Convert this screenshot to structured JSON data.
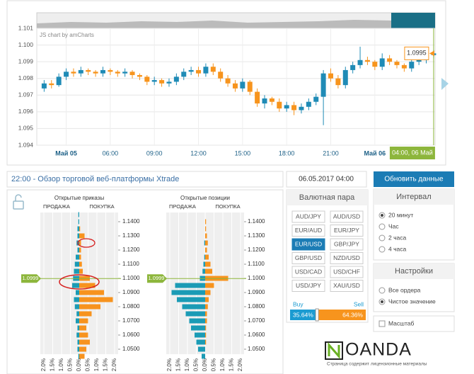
{
  "header": {
    "news": "22:00 - Обзор торговой веб-платформы Xtrade",
    "date": "06.05.2017 04:00",
    "refresh_button": "Обновить данные"
  },
  "chart_data": [
    {
      "type": "candlestick",
      "credit": "JS chart by amCharts",
      "x": [
        1.5,
        2,
        2.5,
        3,
        3.5,
        4,
        4.5,
        5,
        5.5,
        6,
        6.5,
        7,
        7.5,
        8,
        8.5,
        9,
        9.5,
        10,
        10.5,
        11,
        11.5,
        12,
        12.5,
        13,
        13.5,
        14,
        14.5,
        15,
        15.5,
        16,
        16.5,
        17,
        17.5,
        18,
        18.5,
        19,
        19.5,
        20,
        20.5,
        21,
        21.5,
        22,
        22.5,
        23,
        23.5,
        24,
        24.5,
        25,
        25.5,
        26,
        26.5,
        27,
        27.5,
        28
      ],
      "open": [
        1.0974,
        1.0977,
        1.0976,
        1.0981,
        1.0984,
        1.0983,
        1.0985,
        1.0984,
        1.0983,
        1.0985,
        1.0984,
        1.0983,
        1.0984,
        1.0982,
        1.0981,
        1.0978,
        1.0979,
        1.0977,
        1.0978,
        1.0981,
        1.0984,
        1.0985,
        1.0983,
        1.0987,
        1.0984,
        1.098,
        1.0977,
        1.0974,
        1.0978,
        1.0972,
        1.0965,
        1.0968,
        1.0966,
        1.0962,
        1.0964,
        1.0961,
        1.0963,
        1.0966,
        1.0969,
        1.0983,
        1.098,
        1.0976,
        1.0985,
        1.0988,
        1.0991,
        1.099,
        1.0987,
        1.0992,
        1.099,
        1.0988,
        1.0986,
        1.099,
        1.0991,
        1.0994
      ],
      "high": [
        1.0979,
        1.0979,
        1.0983,
        1.0986,
        1.0986,
        1.0987,
        1.0986,
        1.0985,
        1.0987,
        1.0986,
        1.0985,
        1.0986,
        1.0985,
        1.0983,
        1.0982,
        1.0981,
        1.098,
        1.098,
        1.0983,
        1.0986,
        1.0987,
        1.0987,
        1.0989,
        1.0989,
        1.0986,
        1.0982,
        1.0979,
        1.098,
        1.0979,
        1.0974,
        1.097,
        1.0969,
        1.0968,
        1.0966,
        1.0966,
        1.0965,
        1.0968,
        1.0971,
        1.0985,
        1.0986,
        1.0982,
        1.0987,
        1.099,
        1.0999,
        1.0993,
        1.0991,
        1.0995,
        1.0994,
        1.0991,
        1.0989,
        1.0992,
        1.0993,
        1.0996,
        1.0997
      ],
      "low": [
        1.0972,
        1.0974,
        1.0975,
        1.0979,
        1.0981,
        1.0981,
        1.0982,
        1.0981,
        1.0981,
        1.0982,
        1.0981,
        1.0981,
        1.098,
        1.0979,
        1.0976,
        1.0976,
        1.0975,
        1.0975,
        1.0976,
        1.0979,
        1.0982,
        1.0981,
        1.0981,
        1.0982,
        1.0978,
        1.0975,
        1.0972,
        1.0972,
        1.097,
        1.0963,
        1.0962,
        1.0964,
        1.096,
        1.096,
        1.0958,
        1.0959,
        1.0961,
        1.0964,
        1.0952,
        1.0978,
        1.0974,
        1.0974,
        1.0983,
        1.0986,
        1.0988,
        1.0985,
        1.0985,
        1.0988,
        1.0986,
        1.0984,
        1.0984,
        1.0988,
        1.0989,
        1.0992
      ],
      "close": [
        1.0977,
        1.0976,
        1.0981,
        1.0984,
        1.0983,
        1.0985,
        1.0984,
        1.0983,
        1.0985,
        1.0984,
        1.0983,
        1.0984,
        1.0982,
        1.0981,
        1.0978,
        1.0979,
        1.0977,
        1.0978,
        1.0981,
        1.0984,
        1.0985,
        1.0983,
        1.0987,
        1.0984,
        1.098,
        1.0977,
        1.0974,
        1.0978,
        1.0972,
        1.0965,
        1.0968,
        1.0966,
        1.0962,
        1.0964,
        1.0961,
        1.0963,
        1.0966,
        1.0969,
        1.0983,
        1.098,
        1.0976,
        1.0985,
        1.0988,
        1.0991,
        1.099,
        1.0987,
        1.0992,
        1.099,
        1.0988,
        1.0986,
        1.099,
        1.0991,
        1.0994,
        1.0995
      ],
      "up_color": "#1f8bb6",
      "down_color": "#f7941d",
      "xlim": [
        1,
        28.1
      ],
      "xticks": [
        {
          "value": 3,
          "label": "Май 05"
        },
        {
          "value": 6,
          "label": "06:00"
        },
        {
          "value": 9,
          "label": "09:00"
        },
        {
          "value": 12,
          "label": "12:00"
        },
        {
          "value": 15,
          "label": "15:00"
        },
        {
          "value": 18,
          "label": "18:00"
        },
        {
          "value": 21,
          "label": "21:00"
        },
        {
          "value": 24,
          "label": "Май 06"
        }
      ],
      "ylim": [
        1.094,
        1.101
      ],
      "yticks": [
        1.094,
        1.095,
        1.096,
        1.097,
        1.098,
        1.099,
        {
          "value": 1.1,
          "label": "1.100"
        },
        1.101
      ],
      "cursor": {
        "x": {
          "value": 28,
          "label": "04:00, 06 Май"
        },
        "y": 1.0995
      },
      "grid": true
    },
    {
      "type": "order-book",
      "title": "Открытые приказы",
      "levels": [
        1.145,
        1.14,
        1.135,
        1.13,
        1.125,
        1.12,
        1.115,
        1.11,
        1.105,
        1.1,
        1.095,
        1.09,
        1.085,
        1.08,
        1.075,
        1.07,
        1.065,
        1.06,
        1.055,
        1.05,
        1.045
      ],
      "series": [
        {
          "name": "ПРОДАЖА",
          "color": "#1b9bb5",
          "values": [
            0.05,
            0.05,
            0.1,
            0.1,
            0.15,
            0.1,
            0.2,
            0.25,
            0.3,
            0.35,
            0.4,
            0.2,
            0.3,
            0.25,
            0.15,
            0.2,
            0.1,
            0.15,
            0.1,
            0.1,
            0.05
          ]
        },
        {
          "name": "ПОКУПКА",
          "color": "#f7931e",
          "values": [
            0,
            0,
            0.05,
            0.3,
            0.1,
            0.1,
            0.1,
            0.15,
            0.2,
            0.6,
            0.9,
            1.4,
            1.9,
            1.2,
            0.7,
            0.5,
            0.4,
            0.5,
            0.6,
            0.4,
            0.3
          ]
        }
      ],
      "xticks_sell": [
        {
          "value": 2,
          "label": "2.0%"
        },
        {
          "value": 1.5,
          "label": "1.5%"
        },
        {
          "value": 1,
          "label": "1.0%"
        },
        {
          "value": 0.5,
          "label": "0.5%"
        }
      ],
      "xticks_buy": [
        {
          "value": 0,
          "label": "0.0%"
        },
        {
          "value": 0.5,
          "label": "0.5%"
        },
        {
          "value": 1,
          "label": "1.0%"
        },
        {
          "value": 1.5,
          "label": "1.5%"
        },
        {
          "value": 2,
          "label": "2.0%"
        }
      ],
      "xlim": [
        0,
        2.2
      ],
      "ylim": [
        1.0475,
        1.1475
      ],
      "yticks": [
        {
          "value": 1.14,
          "label": "1.1400"
        },
        {
          "value": 1.13,
          "label": "1.1300"
        },
        {
          "value": 1.12,
          "label": "1.1200"
        },
        {
          "value": 1.11,
          "label": "1.1100"
        },
        {
          "value": 1.1,
          "label": "1.1000"
        },
        {
          "value": 1.09,
          "label": "1.0900"
        },
        {
          "value": 1.08,
          "label": "1.0800"
        },
        {
          "value": 1.07,
          "label": "1.0700"
        },
        {
          "value": 1.06,
          "label": "1.0600"
        },
        {
          "value": 1.05,
          "label": "1.0500"
        }
      ],
      "price": 1.0999
    },
    {
      "type": "order-book",
      "title": "Открытые позиции",
      "levels": [
        1.145,
        1.14,
        1.135,
        1.13,
        1.125,
        1.12,
        1.115,
        1.11,
        1.105,
        1.1,
        1.095,
        1.09,
        1.085,
        1.08,
        1.075,
        1.07,
        1.065,
        1.06,
        1.055,
        1.05,
        1.045
      ],
      "series": [
        {
          "name": "ПРОДАЖА",
          "color": "#1b9bb5",
          "values": [
            0,
            0,
            0,
            0,
            0.05,
            0,
            0.05,
            0.1,
            0.15,
            0.3,
            1.7,
            1.9,
            1.6,
            1.3,
            1.1,
            0.9,
            0.8,
            0.6,
            0.5,
            0.4,
            0.2
          ]
        },
        {
          "name": "ПОКУПКА",
          "color": "#f7931e",
          "values": [
            0,
            0.05,
            0.05,
            0.1,
            0.15,
            0.1,
            0.2,
            0.3,
            0.4,
            1.3,
            0.5,
            0.3,
            0.2,
            0.15,
            0.1,
            0.1,
            0.05,
            0.05,
            0.05,
            0,
            0
          ]
        }
      ],
      "xticks_sell": [
        {
          "value": 2,
          "label": "2.0%"
        },
        {
          "value": 1.5,
          "label": "1.5%"
        },
        {
          "value": 1,
          "label": "1.0%"
        },
        {
          "value": 0.5,
          "label": "0.5%"
        }
      ],
      "xticks_buy": [
        {
          "value": 0,
          "label": "0.0%"
        },
        {
          "value": 0.5,
          "label": "0.5%"
        },
        {
          "value": 1,
          "label": "1.0%"
        },
        {
          "value": 1.5,
          "label": "1.5%"
        },
        {
          "value": 2,
          "label": "2.0%"
        }
      ],
      "xlim": [
        0,
        2.2
      ],
      "ylim": [
        1.0475,
        1.1475
      ],
      "yticks": [
        {
          "value": 1.14,
          "label": "1.1400"
        },
        {
          "value": 1.13,
          "label": "1.1300"
        },
        {
          "value": 1.12,
          "label": "1.1200"
        },
        {
          "value": 1.11,
          "label": "1.1100"
        },
        {
          "value": 1.1,
          "label": "1.1000"
        },
        {
          "value": 1.09,
          "label": "1.0900"
        },
        {
          "value": 1.08,
          "label": "1.0800"
        },
        {
          "value": 1.07,
          "label": "1.0700"
        },
        {
          "value": 1.06,
          "label": "1.0600"
        },
        {
          "value": 1.05,
          "label": "1.0500"
        }
      ],
      "price": 1.0999
    }
  ],
  "pair_panel": {
    "title": "Валютная пара",
    "pairs": [
      "AUD/JPY",
      "AUD/USD",
      "EUR/AUD",
      "EUR/JPY",
      "EUR/USD",
      "GBP/JPY",
      "GBP/USD",
      "NZD/USD",
      "USD/CAD",
      "USD/CHF",
      "USD/JPY",
      "XAU/USD"
    ],
    "active": "EUR/USD"
  },
  "sentiment": {
    "buy_label": "Buy",
    "sell_label": "Sell",
    "buy": {
      "value": 35.64,
      "label": "35.64%"
    },
    "sell": {
      "value": 64.36,
      "label": "64.36%"
    },
    "buy_color": "#1b9bd1",
    "sell_color": "#f7941d"
  },
  "interval_panel": {
    "title": "Интервал",
    "options": [
      "20 минут",
      "Час",
      "2 часа",
      "4 часа"
    ],
    "selected": "20 минут"
  },
  "settings_panel": {
    "title": "Настройки",
    "options": [
      "Все ордера",
      "Чистое значение"
    ],
    "selected": "Чистое значение"
  },
  "scale": {
    "label": "Масштаб",
    "checked": false
  },
  "logo": {
    "name": "OANDA",
    "caption": "Страница содержит лицензионные материалы"
  }
}
